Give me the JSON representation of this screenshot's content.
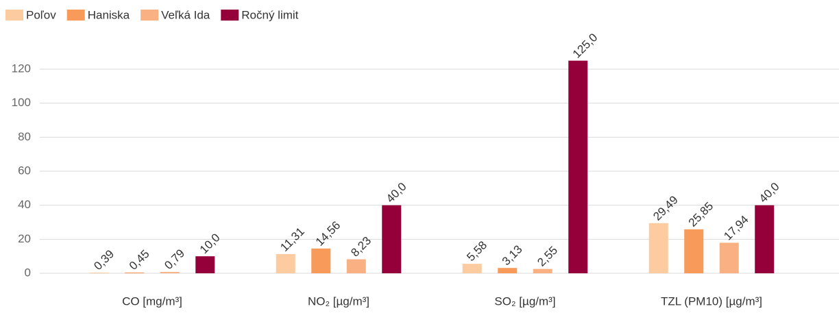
{
  "chart_data": {
    "type": "bar",
    "categories": [
      "CO [mg/m³]",
      "NO₂ [µg/m³]",
      "SO₂ [µg/m³]",
      "TZL (PM10) [µg/m³]"
    ],
    "series": [
      {
        "name": "Poľov",
        "color": "#fdcba0",
        "values": [
          0.39,
          11.31,
          5.58,
          29.49
        ],
        "value_labels": [
          "0,39",
          "11,31",
          "5,58",
          "29,49"
        ]
      },
      {
        "name": "Haniska",
        "color": "#f79a5a",
        "values": [
          0.45,
          14.56,
          3.13,
          25.85
        ],
        "value_labels": [
          "0,45",
          "14,56",
          "3,13",
          "25,85"
        ]
      },
      {
        "name": "Veľká Ida",
        "color": "#f9b183",
        "values": [
          0.79,
          8.23,
          2.55,
          17.94
        ],
        "value_labels": [
          "0,79",
          "8,23",
          "2,55",
          "17,94"
        ]
      },
      {
        "name": "Ročný limit",
        "color": "#96003a",
        "values": [
          10,
          40,
          125,
          40
        ],
        "value_labels": [
          "10,0",
          "40,0",
          "125,0",
          "40,0"
        ]
      }
    ],
    "ylim": [
      0,
      130
    ],
    "yticks": [
      0,
      20,
      40,
      60,
      80,
      100,
      120
    ],
    "grid": true,
    "legend": "top-left"
  }
}
